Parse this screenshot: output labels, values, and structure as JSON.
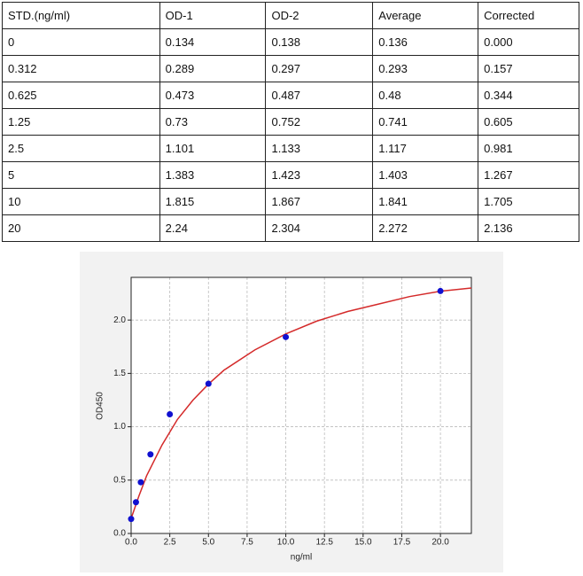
{
  "table": {
    "header": [
      "STD.(ng/ml)",
      "OD-1",
      "OD-2",
      "Average",
      "Corrected"
    ],
    "rows": [
      [
        "0",
        "0.134",
        "0.138",
        "0.136",
        "0.000"
      ],
      [
        "0.312",
        "0.289",
        "0.297",
        "0.293",
        "0.157"
      ],
      [
        "0.625",
        "0.473",
        "0.487",
        "0.48",
        "0.344"
      ],
      [
        "1.25",
        "0.73",
        "0.752",
        "0.741",
        "0.605"
      ],
      [
        "2.5",
        "1.101",
        "1.133",
        "1.117",
        "0.981"
      ],
      [
        "5",
        "1.383",
        "1.423",
        "1.403",
        "1.267"
      ],
      [
        "10",
        "1.815",
        "1.867",
        "1.841",
        "1.705"
      ],
      [
        "20",
        "2.24",
        "2.304",
        "2.272",
        "2.136"
      ]
    ]
  },
  "chart_data": {
    "type": "scatter",
    "xlabel": "ng/ml",
    "ylabel": "OD450",
    "x": [
      0,
      0.312,
      0.625,
      1.25,
      2.5,
      5,
      10,
      20
    ],
    "values": [
      0.136,
      0.293,
      0.48,
      0.741,
      1.117,
      1.403,
      1.841,
      2.272
    ],
    "color": "#1010d0",
    "fit": {
      "x": [
        0,
        0.5,
        1,
        2,
        3,
        4,
        5,
        6,
        8,
        10,
        12,
        14,
        16,
        18,
        20,
        22
      ],
      "values": [
        0.14,
        0.35,
        0.54,
        0.83,
        1.07,
        1.25,
        1.4,
        1.53,
        1.72,
        1.87,
        1.99,
        2.08,
        2.15,
        2.22,
        2.27,
        2.3
      ],
      "color": "#d42a2a"
    },
    "xlim": [
      0,
      22
    ],
    "ylim": [
      0,
      2.4
    ],
    "xticks": [
      {
        "value": 0,
        "label": "0.0"
      },
      {
        "value": 2.5,
        "label": "2.5"
      },
      {
        "value": 5,
        "label": "5.0"
      },
      {
        "value": 7.5,
        "label": "7.5"
      },
      {
        "value": 10,
        "label": "10.0"
      },
      {
        "value": 12.5,
        "label": "12.5"
      },
      {
        "value": 15,
        "label": "15.0"
      },
      {
        "value": 17.5,
        "label": "17.5"
      },
      {
        "value": 20,
        "label": "20.0"
      }
    ],
    "yticks": [
      {
        "value": 0,
        "label": "0.0"
      },
      {
        "value": 0.5,
        "label": "0.5"
      },
      {
        "value": 1,
        "label": "1.0"
      },
      {
        "value": 1.5,
        "label": "1.5"
      },
      {
        "value": 2,
        "label": "2.0"
      }
    ],
    "grid": true
  }
}
